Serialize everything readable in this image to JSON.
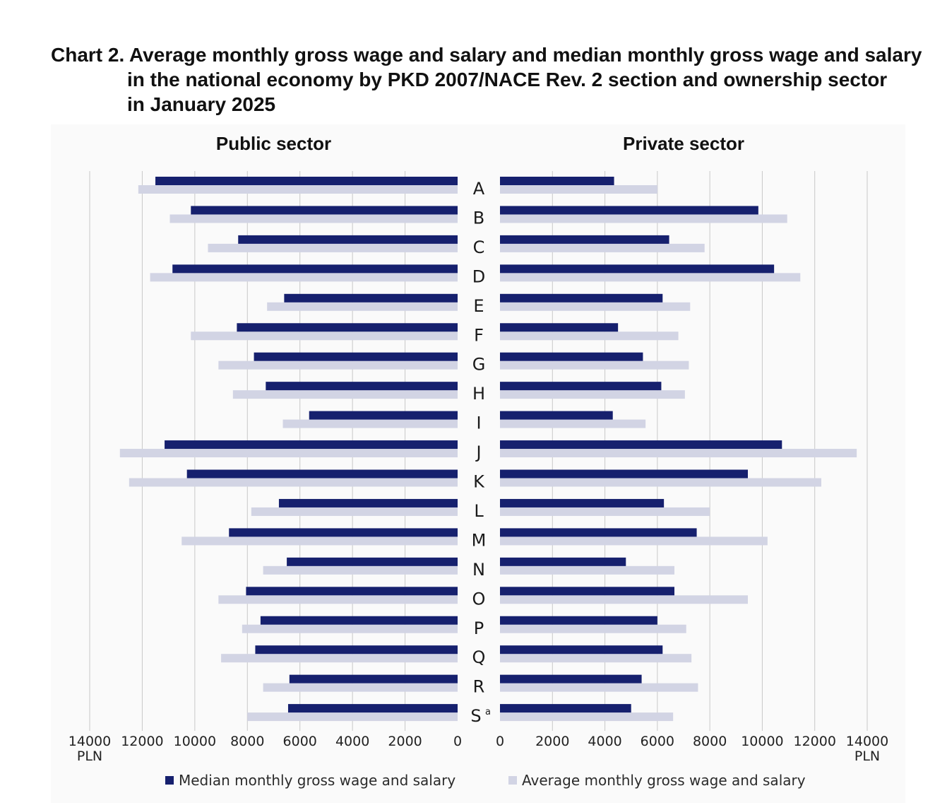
{
  "title": {
    "line1": "Chart 2. Average monthly gross wage and salary and median monthly gross wage and salary",
    "line2": "in the national economy by PKD 2007/NACE Rev. 2 section and ownership sector",
    "line3": "in January 2025"
  },
  "colors": {
    "median": "#16206e",
    "average": "#d2d4e4",
    "grid": "#c8c8c8"
  },
  "chart_data": {
    "type": "bar",
    "orientation": "horizontal",
    "layout": "butterfly",
    "categories": [
      "A",
      "B",
      "C",
      "D",
      "E",
      "F",
      "G",
      "H",
      "I",
      "J",
      "K",
      "L",
      "M",
      "N",
      "O",
      "P",
      "Q",
      "R",
      "S"
    ],
    "category_superscripts": {
      "S": "a"
    },
    "unit": "PLN",
    "panels": [
      {
        "title": "Public sector",
        "direction": "left",
        "xlim": [
          0,
          14000
        ],
        "ticks": [
          0,
          2000,
          4000,
          6000,
          8000,
          10000,
          12000,
          14000
        ],
        "series": [
          {
            "name": "Median monthly gross wage and salary",
            "values": [
              11500,
              10150,
              8350,
              10850,
              6600,
              8400,
              7750,
              7300,
              5650,
              11150,
              10300,
              6800,
              8700,
              6500,
              8050,
              7500,
              7700,
              6400,
              6450
            ]
          },
          {
            "name": "Average monthly gross wage and salary",
            "values": [
              12150,
              10950,
              9500,
              11700,
              7250,
              10150,
              9100,
              8550,
              6650,
              12850,
              12500,
              7850,
              10500,
              7400,
              9100,
              8200,
              9000,
              7400,
              8000
            ]
          }
        ]
      },
      {
        "title": "Private sector",
        "direction": "right",
        "xlim": [
          0,
          14000
        ],
        "ticks": [
          0,
          2000,
          4000,
          6000,
          8000,
          10000,
          12000,
          14000
        ],
        "series": [
          {
            "name": "Median monthly gross wage and salary",
            "values": [
              4350,
              9850,
              6450,
              10450,
              6200,
              4500,
              5450,
              6150,
              4300,
              10750,
              9450,
              6250,
              7500,
              4800,
              6650,
              6000,
              6200,
              5400,
              5000
            ]
          },
          {
            "name": "Average monthly gross wage and salary",
            "values": [
              6000,
              10950,
              7800,
              11450,
              7250,
              6800,
              7200,
              7050,
              5550,
              13600,
              12250,
              8000,
              10200,
              6650,
              9450,
              7100,
              7300,
              7550,
              6600
            ]
          }
        ]
      }
    ],
    "legend": {
      "median_label": "Median monthly gross wage and salary",
      "average_label": "Average monthly gross wage and salary",
      "placement": "bottom"
    },
    "grid": true
  }
}
